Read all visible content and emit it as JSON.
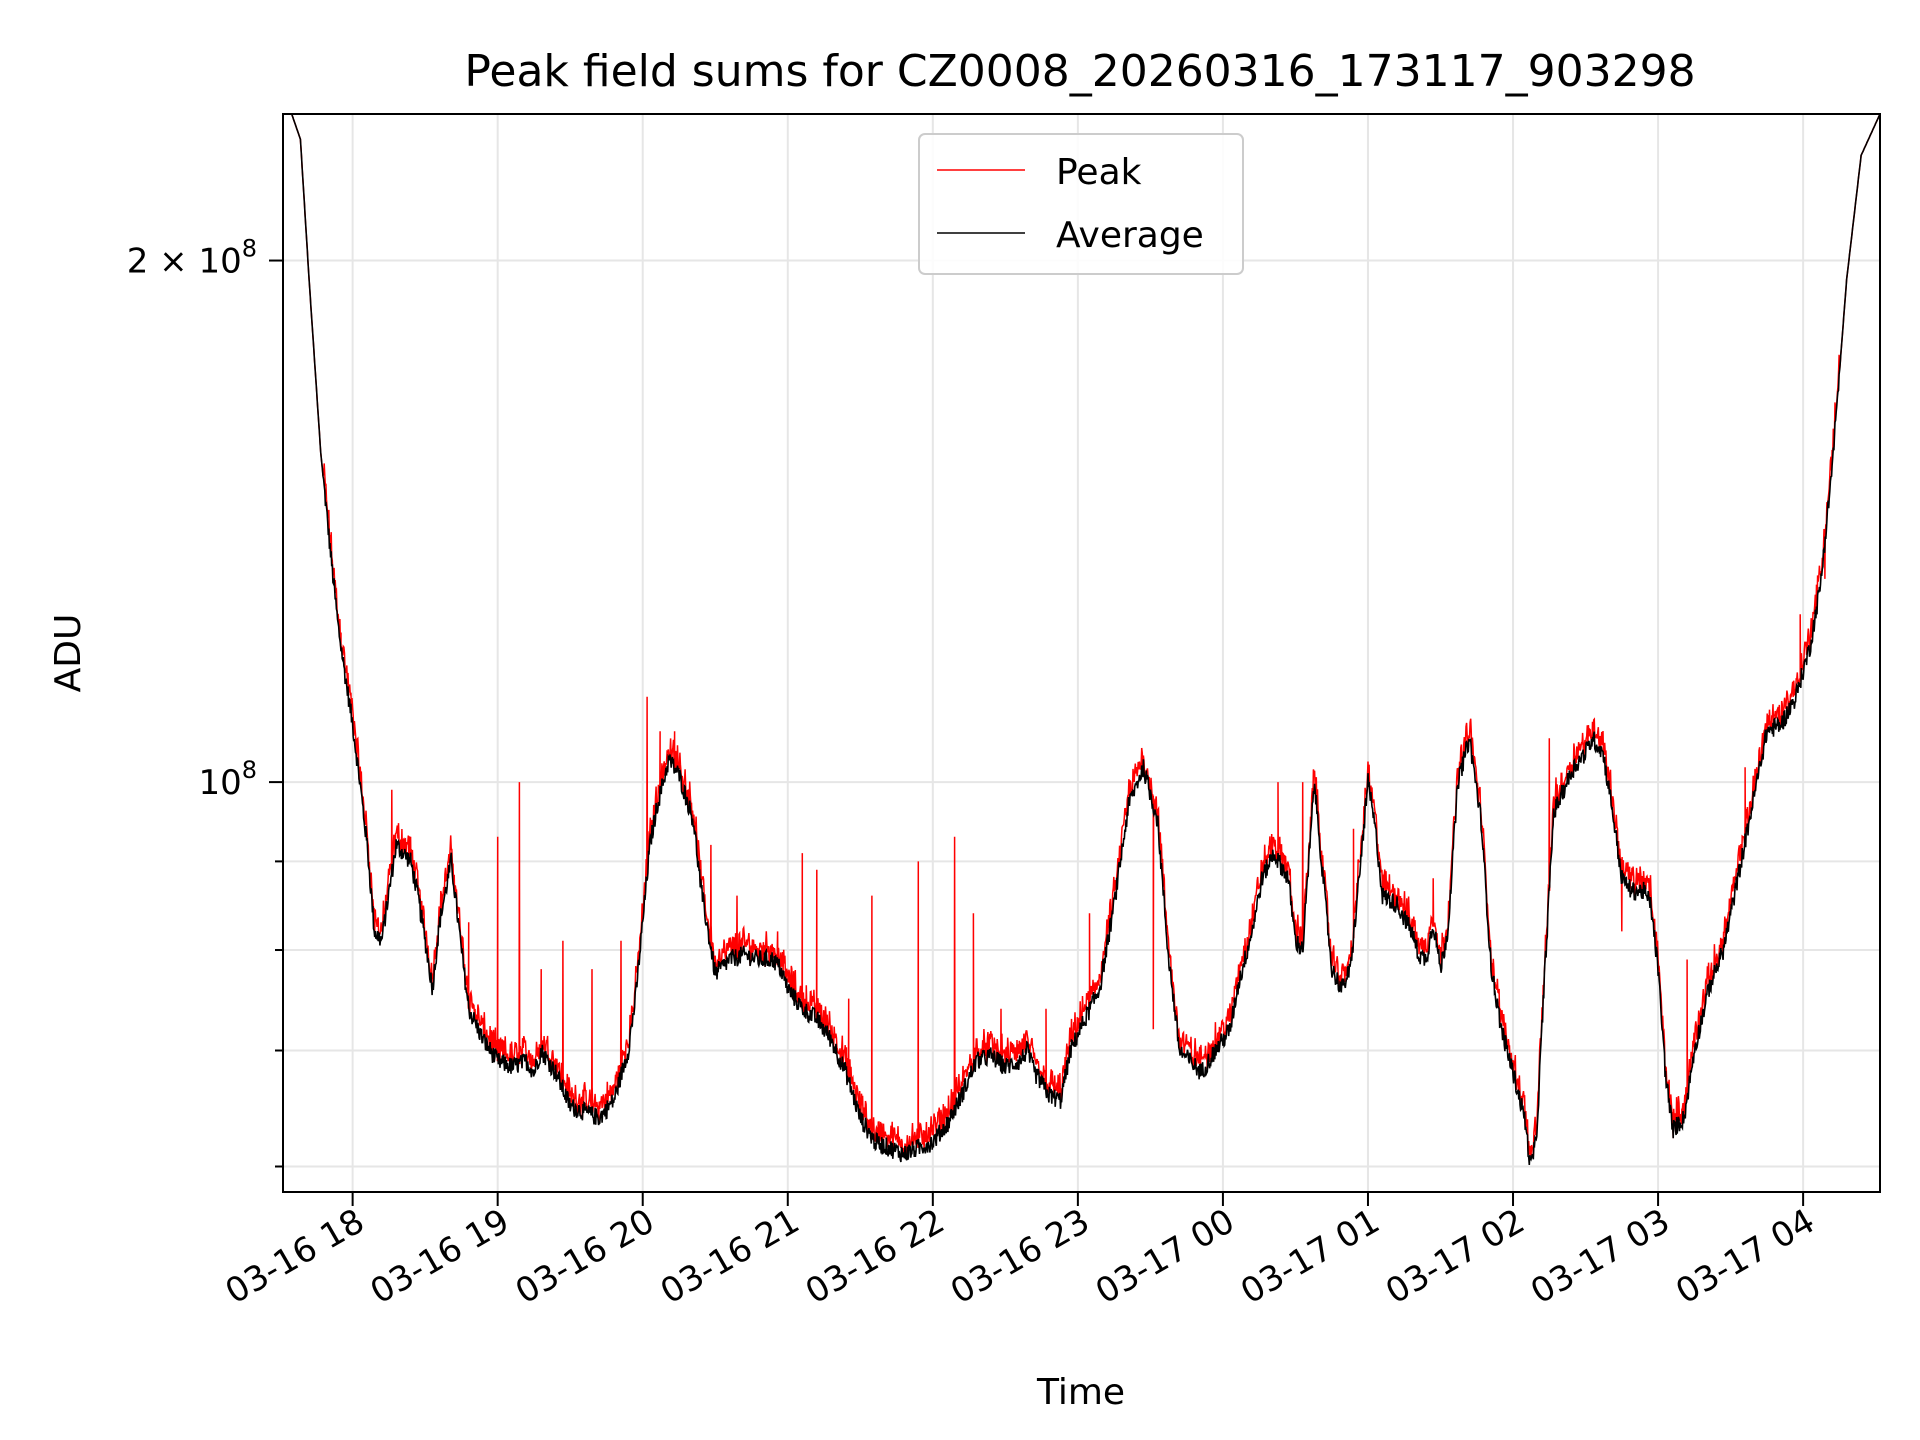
{
  "chart_data": {
    "type": "line",
    "title": "Peak field sums for CZ0008_20260316_173117_903298",
    "xlabel": "Time",
    "ylabel": "ADU",
    "yscale": "log",
    "ylim": [
      58000000,
      243000000
    ],
    "xlim_hours": [
      -0.48,
      10.53
    ],
    "x_unit": "hours since 03-16 18:00",
    "grid": true,
    "legend_position": "top-center",
    "x_ticks": [
      {
        "value": 0,
        "label": "03-16 18"
      },
      {
        "value": 1,
        "label": "03-16 19"
      },
      {
        "value": 2,
        "label": "03-16 20"
      },
      {
        "value": 3,
        "label": "03-16 21"
      },
      {
        "value": 4,
        "label": "03-16 22"
      },
      {
        "value": 5,
        "label": "03-16 23"
      },
      {
        "value": 6,
        "label": "03-17 00"
      },
      {
        "value": 7,
        "label": "03-17 01"
      },
      {
        "value": 8,
        "label": "03-17 02"
      },
      {
        "value": 9,
        "label": "03-17 03"
      },
      {
        "value": 10,
        "label": "03-17 04"
      }
    ],
    "y_major_ticks": [
      {
        "value": 100000000,
        "base": "10",
        "exp": "8",
        "mantissa": ""
      },
      {
        "value": 200000000,
        "base": "10",
        "exp": "8",
        "mantissa": "2 × "
      }
    ],
    "y_minor_ticks": [
      60000000,
      70000000,
      80000000,
      90000000
    ],
    "series": [
      {
        "name": "Peak",
        "color": "#ff0000",
        "spikes": [
          [
            -0.08,
            122000000
          ],
          [
            0.05,
            100000000
          ],
          [
            0.27,
            99000000
          ],
          [
            0.4,
            93000000
          ],
          [
            0.8,
            83000000
          ],
          [
            1.0,
            93000000
          ],
          [
            1.15,
            100000000
          ],
          [
            1.3,
            78000000
          ],
          [
            1.45,
            81000000
          ],
          [
            1.65,
            78000000
          ],
          [
            1.85,
            81000000
          ],
          [
            2.03,
            112000000
          ],
          [
            2.12,
            107000000
          ],
          [
            2.22,
            107000000
          ],
          [
            2.47,
            92000000
          ],
          [
            2.65,
            86000000
          ],
          [
            2.93,
            82000000
          ],
          [
            3.1,
            91000000
          ],
          [
            3.2,
            89000000
          ],
          [
            3.42,
            75000000
          ],
          [
            3.58,
            86000000
          ],
          [
            3.9,
            90000000
          ],
          [
            4.15,
            93000000
          ],
          [
            4.28,
            84000000
          ],
          [
            4.47,
            74000000
          ],
          [
            4.78,
            74000000
          ],
          [
            5.08,
            84000000
          ],
          [
            5.52,
            72000000
          ],
          [
            6.38,
            100000000
          ],
          [
            6.55,
            100000000
          ],
          [
            6.9,
            94000000
          ],
          [
            7.45,
            88000000
          ],
          [
            8.25,
            106000000
          ],
          [
            8.75,
            82000000
          ],
          [
            9.2,
            79000000
          ],
          [
            9.6,
            102000000
          ],
          [
            9.78,
            108000000
          ],
          [
            9.98,
            125000000
          ],
          [
            10.15,
            131000000
          ]
        ]
      },
      {
        "name": "Average",
        "color": "#000000",
        "points": [
          [
            -0.48,
            243000000
          ],
          [
            -0.42,
            243000000
          ],
          [
            -0.36,
            235000000
          ],
          [
            -0.3,
            195000000
          ],
          [
            -0.22,
            155000000
          ],
          [
            -0.15,
            135000000
          ],
          [
            -0.1,
            123000000
          ],
          [
            -0.05,
            115000000
          ],
          [
            0.0,
            108000000
          ],
          [
            0.05,
            100000000
          ],
          [
            0.1,
            92000000
          ],
          [
            0.15,
            82000000
          ],
          [
            0.2,
            81000000
          ],
          [
            0.3,
            92000000
          ],
          [
            0.4,
            90000000
          ],
          [
            0.45,
            86000000
          ],
          [
            0.5,
            81000000
          ],
          [
            0.55,
            76000000
          ],
          [
            0.6,
            83000000
          ],
          [
            0.68,
            90000000
          ],
          [
            0.75,
            80000000
          ],
          [
            0.8,
            74000000
          ],
          [
            0.9,
            71000000
          ],
          [
            1.0,
            69000000
          ],
          [
            1.1,
            68500000
          ],
          [
            1.2,
            69000000
          ],
          [
            1.25,
            68000000
          ],
          [
            1.3,
            70000000
          ],
          [
            1.4,
            68000000
          ],
          [
            1.5,
            65000000
          ],
          [
            1.6,
            64500000
          ],
          [
            1.7,
            64000000
          ],
          [
            1.8,
            65500000
          ],
          [
            1.9,
            70000000
          ],
          [
            1.95,
            75000000
          ],
          [
            2.0,
            83000000
          ],
          [
            2.05,
            92000000
          ],
          [
            2.1,
            97000000
          ],
          [
            2.18,
            103000000
          ],
          [
            2.25,
            101000000
          ],
          [
            2.35,
            95000000
          ],
          [
            2.4,
            87000000
          ],
          [
            2.45,
            82000000
          ],
          [
            2.5,
            77500000
          ],
          [
            2.6,
            79000000
          ],
          [
            2.7,
            79500000
          ],
          [
            2.8,
            79000000
          ],
          [
            2.9,
            79000000
          ],
          [
            2.95,
            78000000
          ],
          [
            3.0,
            76000000
          ],
          [
            3.1,
            74000000
          ],
          [
            3.2,
            73000000
          ],
          [
            3.3,
            71000000
          ],
          [
            3.4,
            68000000
          ],
          [
            3.5,
            64000000
          ],
          [
            3.6,
            62000000
          ],
          [
            3.7,
            61500000
          ],
          [
            3.8,
            61000000
          ],
          [
            3.9,
            61500000
          ],
          [
            4.0,
            62000000
          ],
          [
            4.1,
            63500000
          ],
          [
            4.2,
            66000000
          ],
          [
            4.3,
            69000000
          ],
          [
            4.4,
            69500000
          ],
          [
            4.5,
            68500000
          ],
          [
            4.6,
            69000000
          ],
          [
            4.65,
            70000000
          ],
          [
            4.7,
            68000000
          ],
          [
            4.8,
            66000000
          ],
          [
            4.88,
            65500000
          ],
          [
            4.95,
            70000000
          ],
          [
            5.05,
            73000000
          ],
          [
            5.15,
            76000000
          ],
          [
            5.25,
            85000000
          ],
          [
            5.35,
            97000000
          ],
          [
            5.45,
            102000000
          ],
          [
            5.55,
            95000000
          ],
          [
            5.62,
            80000000
          ],
          [
            5.7,
            70000000
          ],
          [
            5.85,
            68000000
          ],
          [
            5.95,
            70000000
          ],
          [
            6.05,
            72000000
          ],
          [
            6.1,
            76000000
          ],
          [
            6.2,
            82000000
          ],
          [
            6.27,
            88000000
          ],
          [
            6.35,
            91000000
          ],
          [
            6.45,
            88000000
          ],
          [
            6.5,
            81000000
          ],
          [
            6.55,
            80000000
          ],
          [
            6.63,
            100000000
          ],
          [
            6.68,
            90000000
          ],
          [
            6.75,
            78000000
          ],
          [
            6.82,
            76000000
          ],
          [
            6.88,
            78000000
          ],
          [
            6.95,
            90000000
          ],
          [
            7.0,
            100000000
          ],
          [
            7.05,
            94000000
          ],
          [
            7.1,
            86000000
          ],
          [
            7.2,
            85000000
          ],
          [
            7.3,
            82000000
          ],
          [
            7.35,
            79500000
          ],
          [
            7.4,
            79000000
          ],
          [
            7.45,
            83000000
          ],
          [
            7.5,
            78000000
          ],
          [
            7.55,
            82000000
          ],
          [
            7.62,
            100000000
          ],
          [
            7.7,
            106000000
          ],
          [
            7.78,
            95000000
          ],
          [
            7.85,
            78000000
          ],
          [
            7.92,
            72000000
          ],
          [
            8.0,
            68000000
          ],
          [
            8.08,
            64000000
          ],
          [
            8.12,
            60000000
          ],
          [
            8.16,
            62000000
          ],
          [
            8.22,
            78000000
          ],
          [
            8.28,
            96000000
          ],
          [
            8.35,
            99000000
          ],
          [
            8.42,
            102000000
          ],
          [
            8.5,
            104000000
          ],
          [
            8.55,
            106000000
          ],
          [
            8.62,
            104000000
          ],
          [
            8.68,
            97000000
          ],
          [
            8.75,
            88000000
          ],
          [
            8.82,
            86500000
          ],
          [
            8.9,
            86500000
          ],
          [
            8.95,
            85000000
          ],
          [
            9.0,
            78000000
          ],
          [
            9.05,
            68000000
          ],
          [
            9.1,
            63000000
          ],
          [
            9.18,
            64000000
          ],
          [
            9.25,
            70000000
          ],
          [
            9.35,
            76000000
          ],
          [
            9.45,
            80000000
          ],
          [
            9.55,
            88000000
          ],
          [
            9.65,
            97000000
          ],
          [
            9.75,
            107000000
          ],
          [
            9.85,
            108000000
          ],
          [
            9.95,
            112000000
          ],
          [
            10.05,
            120000000
          ],
          [
            10.12,
            130000000
          ],
          [
            10.2,
            152000000
          ],
          [
            10.3,
            195000000
          ],
          [
            10.4,
            230000000
          ],
          [
            10.53,
            243000000
          ]
        ]
      }
    ]
  }
}
